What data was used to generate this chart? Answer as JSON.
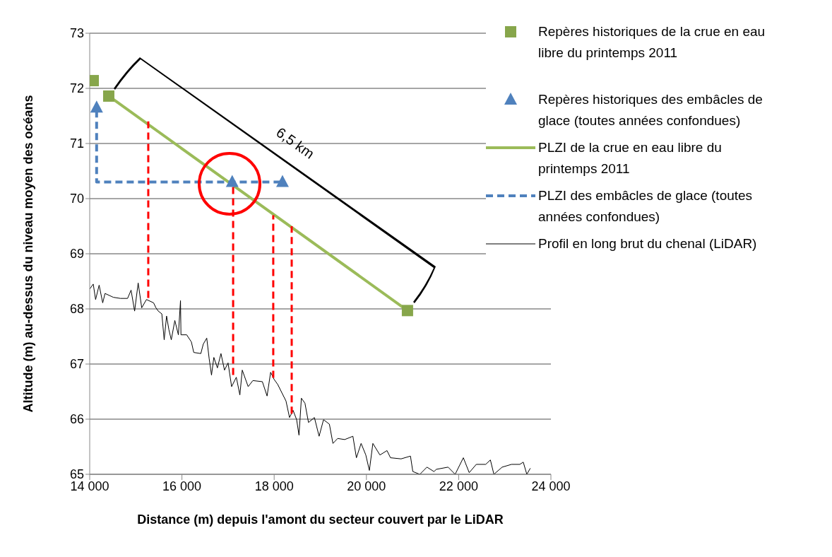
{
  "chart_data": {
    "type": "line",
    "xlabel": "Distance (m) depuis l'amont du secteur couvert par le LiDAR",
    "ylabel": "Altitude (m) au-dessus du niveau moyen des océans",
    "xlim": [
      14000,
      24000
    ],
    "xticks": [
      {
        "value": 14000,
        "label": "14 000"
      },
      {
        "value": 16000,
        "label": "16 000"
      },
      {
        "value": 18000,
        "label": "18 000"
      },
      {
        "value": 20000,
        "label": "20 000"
      },
      {
        "value": 22000,
        "label": "22 000"
      },
      {
        "value": 24000,
        "label": "24 000"
      }
    ],
    "ylim": [
      65,
      73
    ],
    "yticks": [
      65,
      66,
      67,
      68,
      69,
      70,
      71,
      72,
      73
    ],
    "grid": "y",
    "legend": "right",
    "annotations": [
      "6,5 km"
    ],
    "series": [
      {
        "type": "scatter",
        "name": "Repères historiques de la crue en eau libre du printemps 2011",
        "color": "#87a64b",
        "marker": "square",
        "x": [
          14077,
          14413,
          20890
        ],
        "values": [
          72.14,
          71.86,
          67.97
        ]
      },
      {
        "type": "scatter",
        "name": "Repères historiques des embâcles de glace (toutes années confondues)",
        "color": "#4f81bd",
        "marker": "triangle",
        "x": [
          14150,
          17090,
          18180
        ],
        "values": [
          71.65,
          70.3,
          70.3
        ]
      },
      {
        "name": "PLZI de la crue en eau libre du printemps 2011",
        "color": "#9bbb59",
        "marker": "none",
        "line_style": "solid",
        "x": [
          14413,
          20890
        ],
        "values": [
          71.86,
          67.97
        ]
      },
      {
        "name": "PLZI des embâcles de glace (toutes années confondues)",
        "color": "#4f81bd",
        "marker": "none",
        "line_style": "dashed",
        "x": [
          14150,
          14150,
          18180
        ],
        "values": [
          71.6,
          70.3,
          70.3
        ]
      },
      {
        "name": "Profil en long brut du chenal (LiDAR)",
        "color": "#000000",
        "marker": "none",
        "line_style": "solid",
        "x": [
          14000,
          14077,
          14128,
          14205,
          14282,
          14333,
          14513,
          14667,
          14821,
          14897,
          14974,
          15051,
          15128,
          15231,
          15385,
          15436,
          15487,
          15564,
          15615,
          15667,
          15718,
          15769,
          15846,
          15923,
          15969,
          15979,
          16103,
          16205,
          16256,
          16410,
          16462,
          16538,
          16590,
          16641,
          16692,
          16769,
          16846,
          16923,
          17000,
          17077,
          17179,
          17256,
          17308,
          17436,
          17538,
          17744,
          17846,
          17923,
          18000,
          18077,
          18154,
          18256,
          18333,
          18410,
          18487,
          18538,
          18590,
          18667,
          18744,
          18872,
          18974,
          19070,
          19197,
          19274,
          19376,
          19529,
          19707,
          19783,
          19885,
          19987,
          20064,
          20140,
          20293,
          20446,
          20522,
          20752,
          20955,
          21006,
          21159,
          21312,
          21465,
          21516,
          21771,
          21924,
          22102,
          22229,
          22382,
          22586,
          22688,
          22764,
          22943,
          23146,
          23325,
          23401,
          23478,
          23554
        ],
        "values": [
          68.36,
          68.45,
          68.17,
          68.43,
          68.11,
          68.28,
          68.21,
          68.19,
          68.19,
          68.34,
          67.96,
          68.47,
          68.02,
          68.17,
          68.11,
          68.02,
          67.96,
          67.91,
          67.44,
          67.87,
          67.62,
          67.44,
          67.79,
          67.53,
          68.15,
          67.53,
          67.53,
          67.4,
          67.21,
          67.19,
          67.36,
          67.47,
          67.1,
          66.8,
          67.12,
          66.93,
          67.19,
          66.89,
          67.02,
          66.59,
          66.76,
          66.44,
          66.89,
          66.59,
          66.7,
          66.68,
          66.42,
          66.85,
          66.72,
          66.63,
          66.5,
          66.33,
          66.03,
          66.16,
          65.99,
          65.71,
          66.38,
          66.29,
          65.94,
          66.03,
          65.69,
          65.99,
          65.91,
          65.56,
          65.65,
          65.63,
          65.69,
          65.3,
          65.56,
          65.35,
          65.07,
          65.56,
          65.35,
          65.43,
          65.3,
          65.28,
          65.33,
          65.05,
          65.0,
          65.13,
          65.05,
          65.09,
          65.13,
          65.0,
          65.3,
          65.03,
          65.18,
          65.18,
          65.26,
          65.0,
          65.13,
          65.18,
          65.18,
          65.22,
          65.0,
          65.11
        ]
      },
      {
        "type": "line",
        "color": "#ff0000",
        "marker": "none",
        "line_style": "dashed",
        "x": [
          15270,
          15270
        ],
        "values": [
          68.2,
          71.4
        ]
      },
      {
        "type": "line",
        "color": "#ff0000",
        "marker": "none",
        "line_style": "dashed",
        "x": [
          17110,
          17110
        ],
        "values": [
          66.8,
          70.3
        ]
      },
      {
        "type": "line",
        "color": "#ff0000",
        "marker": "none",
        "line_style": "dashed",
        "x": [
          17980,
          17980
        ],
        "values": [
          66.75,
          69.7
        ]
      },
      {
        "type": "line",
        "color": "#ff0000",
        "marker": "none",
        "line_style": "dashed",
        "x": [
          18380,
          18380
        ],
        "values": [
          66.1,
          69.5
        ]
      }
    ]
  }
}
